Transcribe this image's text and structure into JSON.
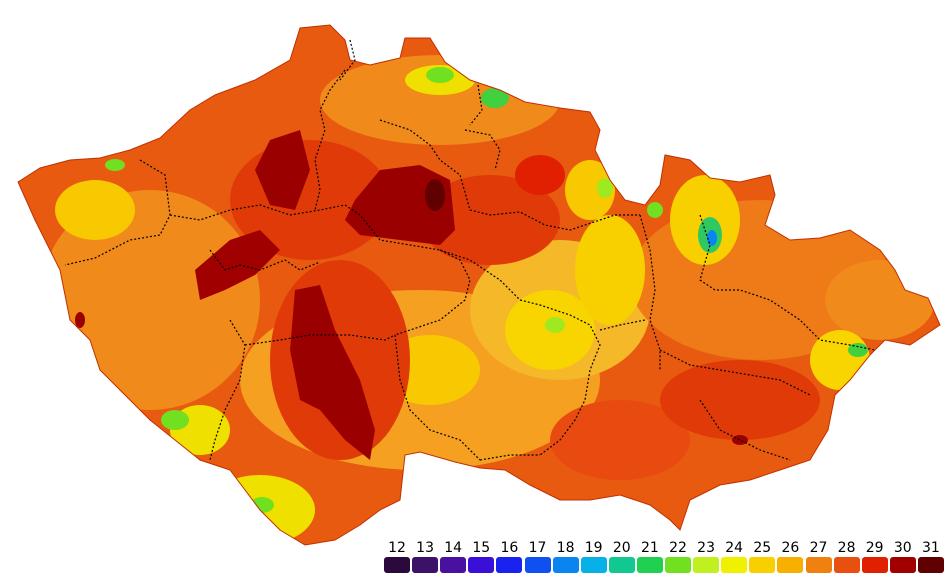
{
  "map": {
    "legend": {
      "labels": [
        "12",
        "13",
        "14",
        "15",
        "16",
        "17",
        "18",
        "19",
        "20",
        "21",
        "22",
        "23",
        "24",
        "25",
        "26",
        "27",
        "28",
        "29",
        "30",
        "31"
      ],
      "colors": [
        "#2a0a3d",
        "#3b1268",
        "#4a10a0",
        "#3a10d8",
        "#1a22f0",
        "#1050f0",
        "#0a84f0",
        "#08b0e8",
        "#10c890",
        "#20d050",
        "#70e020",
        "#c0f020",
        "#f0f000",
        "#f8d000",
        "#f8b000",
        "#f08010",
        "#e85010",
        "#e02000",
        "#a00000",
        "#600000"
      ]
    }
  }
}
